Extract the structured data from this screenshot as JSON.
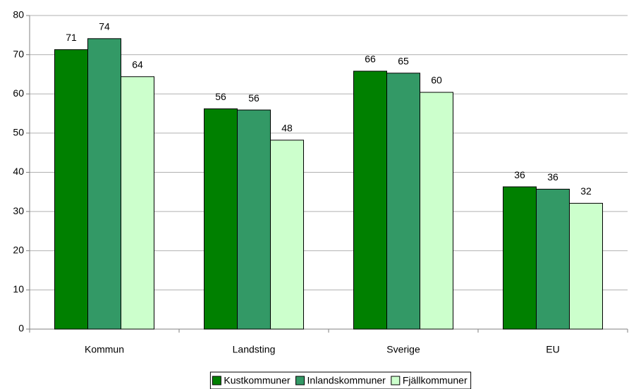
{
  "chart_data": {
    "type": "bar",
    "categories": [
      "Kommun",
      "Landsting",
      "Sverige",
      "EU"
    ],
    "series": [
      {
        "name": "Kustkommuner",
        "color": "#008000",
        "values": [
          71.3,
          56.2,
          65.8,
          36.3
        ],
        "value_labels": [
          "71",
          "56",
          "66",
          "36"
        ]
      },
      {
        "name": "Inlandskommuner",
        "color": "#339966",
        "values": [
          74.1,
          55.9,
          65.3,
          35.7
        ],
        "value_labels": [
          "74",
          "56",
          "65",
          "36"
        ]
      },
      {
        "name": "Fjällkommuner",
        "color": "#ccffcc",
        "values": [
          64.4,
          48.2,
          60.4,
          32.1
        ],
        "value_labels": [
          "64",
          "48",
          "60",
          "32"
        ]
      }
    ],
    "ylim": [
      0,
      80
    ],
    "yticks": [
      0,
      10,
      20,
      30,
      40,
      50,
      60,
      70,
      80
    ],
    "grid": true,
    "legend": "bottom"
  }
}
